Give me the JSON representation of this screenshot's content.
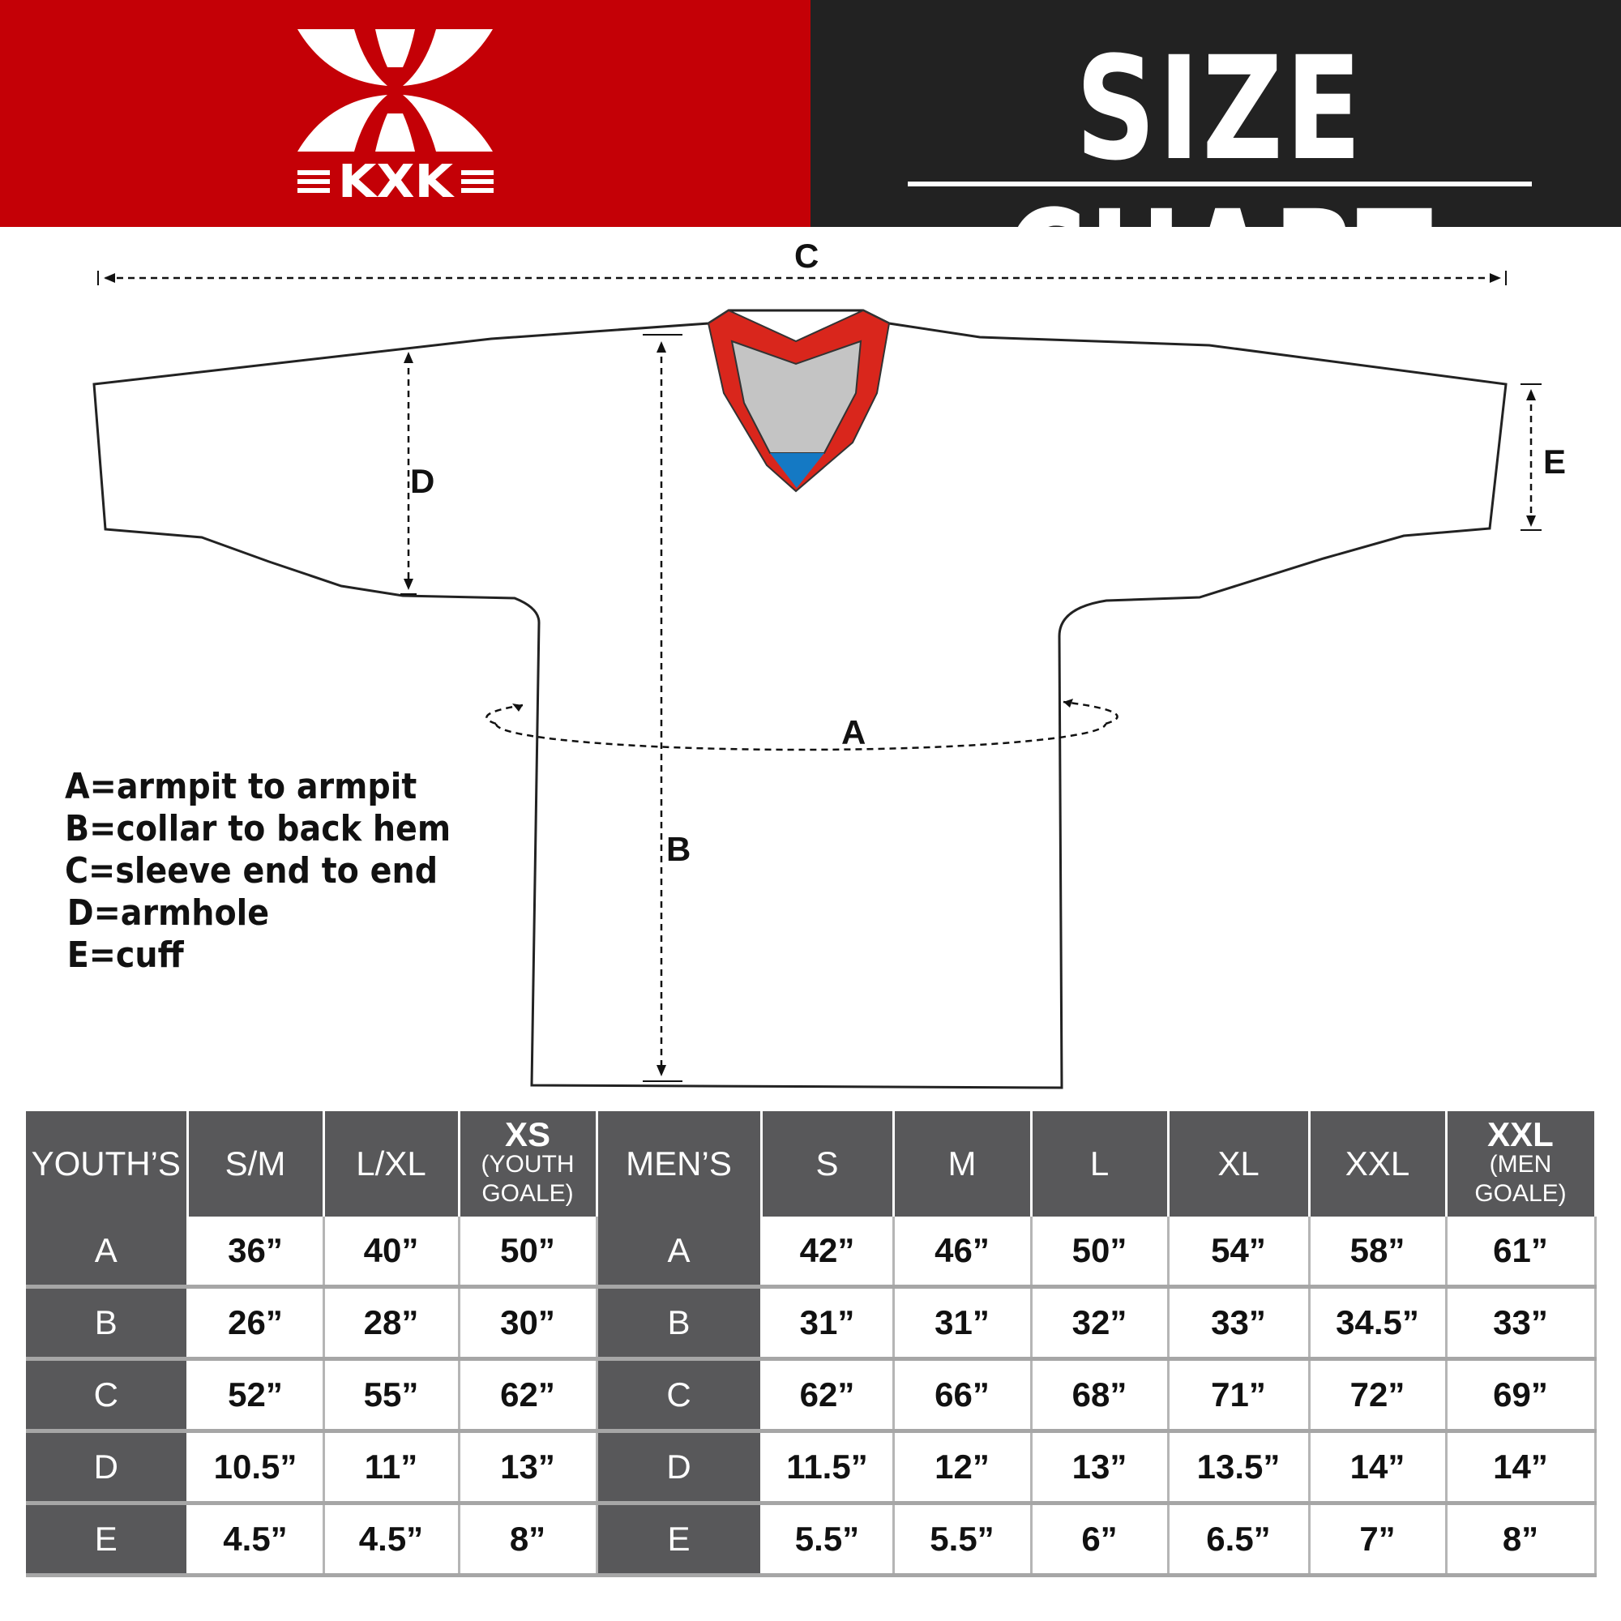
{
  "brand": {
    "logo_text": "KXK",
    "red": "#c40006",
    "dark": "#222222"
  },
  "header": {
    "title": "SIZE CHART"
  },
  "diagram": {
    "labels": {
      "A": "A",
      "B": "B",
      "C": "C",
      "D": "D",
      "E": "E"
    },
    "collar_colors": {
      "trim": "#d9261c",
      "inner": "#c4c4c4",
      "tip": "#1479c4"
    }
  },
  "legend": [
    "A=armpit to armpit",
    "B=collar to back hem",
    "C=sleeve end to end",
    "D=armhole",
    "E=cuff"
  ],
  "table": {
    "youth_header": "YOUTH’S",
    "youth_sizes": [
      {
        "label": "S/M",
        "sub": ""
      },
      {
        "label": "L/XL",
        "sub": ""
      },
      {
        "label": "XS",
        "sub": "(YOUTH GOALE)"
      }
    ],
    "men_header": "MEN’S",
    "men_sizes": [
      {
        "label": "S",
        "sub": ""
      },
      {
        "label": "M",
        "sub": ""
      },
      {
        "label": "L",
        "sub": ""
      },
      {
        "label": "XL",
        "sub": ""
      },
      {
        "label": "XXL",
        "sub": ""
      },
      {
        "label": "XXL",
        "sub": "(MEN GOALE)"
      }
    ],
    "rows": [
      {
        "key": "A",
        "youth": [
          "36”",
          "40”",
          "50”"
        ],
        "men": [
          "42”",
          "46”",
          "50”",
          "54”",
          "58”",
          "61”"
        ]
      },
      {
        "key": "B",
        "youth": [
          "26”",
          "28”",
          "30”"
        ],
        "men": [
          "31”",
          "31”",
          "32”",
          "33”",
          "34.5”",
          "33”"
        ]
      },
      {
        "key": "C",
        "youth": [
          "52”",
          "55”",
          "62”"
        ],
        "men": [
          "62”",
          "66”",
          "68”",
          "71”",
          "72”",
          "69”"
        ]
      },
      {
        "key": "D",
        "youth": [
          "10.5”",
          "11”",
          "13”"
        ],
        "men": [
          "11.5”",
          "12”",
          "13”",
          "13.5”",
          "14”",
          "14”"
        ]
      },
      {
        "key": "E",
        "youth": [
          "4.5”",
          "4.5”",
          "8”"
        ],
        "men": [
          "5.5”",
          "5.5”",
          "6”",
          "6.5”",
          "7”",
          "8”"
        ]
      }
    ]
  }
}
